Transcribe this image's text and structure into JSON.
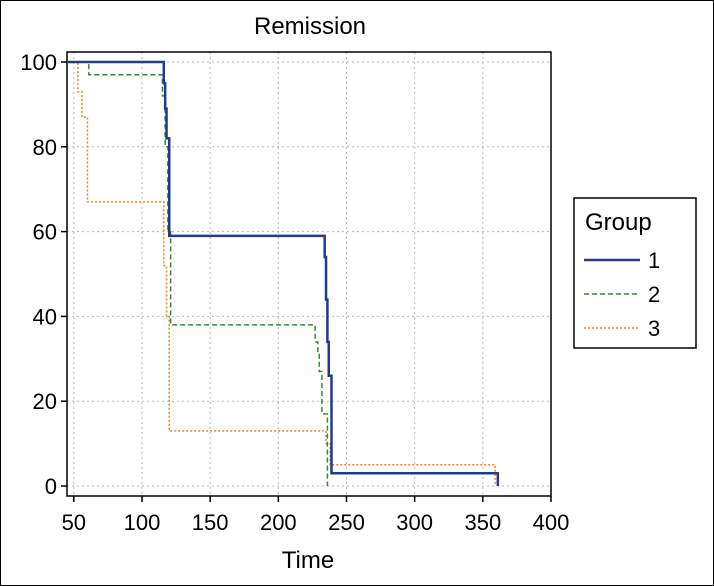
{
  "chart_data": {
    "type": "line",
    "title": "Remission",
    "xlabel": "Time",
    "ylabel": "",
    "xlim": [
      45,
      400
    ],
    "ylim": [
      0,
      100
    ],
    "x_ticks": [
      50,
      100,
      150,
      200,
      250,
      300,
      350,
      400
    ],
    "y_ticks": [
      0,
      20,
      40,
      60,
      80,
      100
    ],
    "grid": true,
    "step": true,
    "legend": {
      "title": "Group",
      "position": "right"
    },
    "series": [
      {
        "name": "1",
        "color": "#1f3c88",
        "style": "solid",
        "points": [
          [
            45,
            100
          ],
          [
            115,
            100
          ],
          [
            116,
            95
          ],
          [
            117,
            89
          ],
          [
            118,
            82
          ],
          [
            120,
            59
          ],
          [
            233,
            59
          ],
          [
            234,
            54
          ],
          [
            235,
            44
          ],
          [
            236,
            34
          ],
          [
            237,
            26
          ],
          [
            239,
            3
          ],
          [
            360,
            3
          ],
          [
            361,
            0
          ]
        ]
      },
      {
        "name": "2",
        "color": "#2e8b2e",
        "style": "dashed",
        "points": [
          [
            45,
            100
          ],
          [
            60,
            100
          ],
          [
            61,
            97
          ],
          [
            113,
            97
          ],
          [
            115,
            92
          ],
          [
            117,
            80
          ],
          [
            119,
            60
          ],
          [
            121,
            38
          ],
          [
            226,
            38
          ],
          [
            227,
            34
          ],
          [
            229,
            31
          ],
          [
            230,
            27
          ],
          [
            232,
            17
          ],
          [
            236,
            0
          ]
        ]
      },
      {
        "name": "3",
        "color": "#ff7f1e",
        "style": "dotted",
        "points": [
          [
            45,
            100
          ],
          [
            50,
            100
          ],
          [
            53,
            93
          ],
          [
            56,
            87
          ],
          [
            60,
            67
          ],
          [
            114,
            67
          ],
          [
            116,
            52
          ],
          [
            118,
            40
          ],
          [
            120,
            13
          ],
          [
            232,
            13
          ],
          [
            235,
            10
          ],
          [
            238,
            5
          ],
          [
            357,
            5
          ],
          [
            359,
            0
          ]
        ]
      }
    ]
  }
}
